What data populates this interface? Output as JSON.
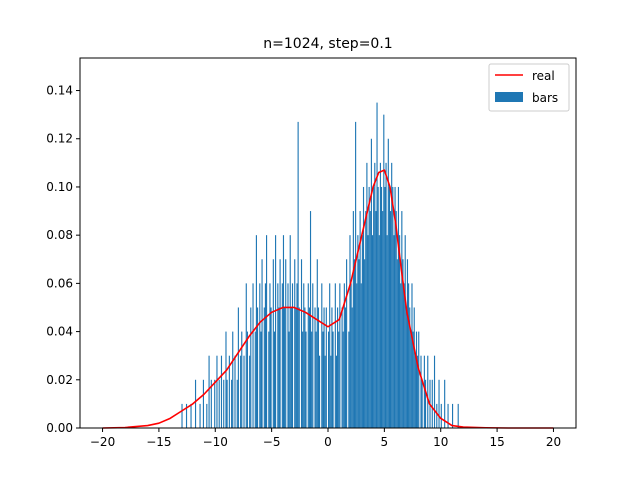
{
  "chart_data": {
    "type": "bar",
    "title": "n=1024, step=0.1",
    "xlabel": "",
    "ylabel": "",
    "xlim": [
      -22.0,
      22.0
    ],
    "ylim": [
      0,
      0.1535
    ],
    "xticks": [
      -20,
      -15,
      -10,
      -5,
      0,
      5,
      10,
      15,
      20
    ],
    "yticks": [
      0.0,
      0.02,
      0.04,
      0.06,
      0.08,
      0.1,
      0.12,
      0.14
    ],
    "xtick_labels": [
      "−20",
      "−15",
      "−10",
      "−5",
      "0",
      "5",
      "10",
      "15",
      "20"
    ],
    "ytick_labels": [
      "0.00",
      "0.02",
      "0.04",
      "0.06",
      "0.08",
      "0.10",
      "0.12",
      "0.14"
    ],
    "grid": false,
    "legend": {
      "position": "top-right",
      "entries": [
        {
          "label": "real",
          "kind": "line",
          "color": "#ff0000"
        },
        {
          "label": "bars",
          "kind": "patch",
          "color": "#1f77b4"
        }
      ]
    },
    "bar_series": {
      "name": "bars",
      "color": "#1f77b4",
      "bin_width": 0.1,
      "x": [
        -13.0,
        -12.6,
        -12.2,
        -11.8,
        -11.4,
        -11.1,
        -10.8,
        -10.6,
        -10.4,
        -10.1,
        -9.9,
        -9.7,
        -9.5,
        -9.3,
        -9.1,
        -9.0,
        -8.8,
        -8.6,
        -8.5,
        -8.3,
        -8.1,
        -8.0,
        -7.8,
        -7.7,
        -7.5,
        -7.3,
        -7.2,
        -7.0,
        -6.9,
        -6.7,
        -6.5,
        -6.4,
        -6.3,
        -6.1,
        -6.0,
        -5.9,
        -5.7,
        -5.6,
        -5.5,
        -5.3,
        -5.2,
        -5.1,
        -4.9,
        -4.8,
        -4.7,
        -4.5,
        -4.4,
        -4.3,
        -4.1,
        -4.0,
        -3.9,
        -3.8,
        -3.6,
        -3.5,
        -3.4,
        -3.3,
        -3.2,
        -3.0,
        -2.9,
        -2.8,
        -2.7,
        -2.6,
        -2.4,
        -2.3,
        -2.2,
        -2.1,
        -2.0,
        -1.8,
        -1.7,
        -1.6,
        -1.5,
        -1.4,
        -1.2,
        -1.1,
        -1.0,
        -0.9,
        -0.8,
        -0.6,
        -0.5,
        -0.4,
        -0.3,
        -0.2,
        0.0,
        0.1,
        0.2,
        0.3,
        0.4,
        0.6,
        0.7,
        0.8,
        0.9,
        1.0,
        1.2,
        1.3,
        1.4,
        1.5,
        1.6,
        1.8,
        1.9,
        2.0,
        2.1,
        2.2,
        2.3,
        2.4,
        2.5,
        2.6,
        2.7,
        2.8,
        2.9,
        3.0,
        3.1,
        3.2,
        3.3,
        3.4,
        3.5,
        3.6,
        3.7,
        3.8,
        3.9,
        4.0,
        4.1,
        4.2,
        4.3,
        4.4,
        4.5,
        4.6,
        4.7,
        4.8,
        4.9,
        5.0,
        5.1,
        5.2,
        5.3,
        5.4,
        5.5,
        5.6,
        5.7,
        5.8,
        5.9,
        6.0,
        6.1,
        6.2,
        6.3,
        6.4,
        6.5,
        6.6,
        6.7,
        6.8,
        6.9,
        7.0,
        7.1,
        7.2,
        7.3,
        7.4,
        7.5,
        7.6,
        7.7,
        7.8,
        7.9,
        8.0,
        8.2,
        8.3,
        8.5,
        8.6,
        8.8,
        9.0,
        9.2,
        9.4,
        9.6,
        9.8,
        10.0,
        10.3,
        10.6,
        11.0,
        11.5
      ],
      "values": [
        0.01,
        0.01,
        0.01,
        0.02,
        0.01,
        0.02,
        0.01,
        0.03,
        0.02,
        0.02,
        0.03,
        0.02,
        0.03,
        0.02,
        0.04,
        0.02,
        0.03,
        0.02,
        0.04,
        0.03,
        0.02,
        0.05,
        0.03,
        0.04,
        0.03,
        0.06,
        0.04,
        0.03,
        0.05,
        0.06,
        0.04,
        0.08,
        0.05,
        0.06,
        0.04,
        0.07,
        0.05,
        0.06,
        0.08,
        0.04,
        0.06,
        0.05,
        0.07,
        0.04,
        0.08,
        0.06,
        0.05,
        0.07,
        0.06,
        0.08,
        0.05,
        0.07,
        0.06,
        0.04,
        0.08,
        0.05,
        0.06,
        0.07,
        0.05,
        0.06,
        0.127,
        0.05,
        0.07,
        0.04,
        0.06,
        0.05,
        0.04,
        0.06,
        0.05,
        0.09,
        0.04,
        0.06,
        0.05,
        0.04,
        0.07,
        0.05,
        0.03,
        0.06,
        0.04,
        0.05,
        0.03,
        0.05,
        0.04,
        0.06,
        0.03,
        0.05,
        0.04,
        0.06,
        0.03,
        0.05,
        0.04,
        0.06,
        0.05,
        0.04,
        0.06,
        0.05,
        0.07,
        0.04,
        0.08,
        0.06,
        0.05,
        0.09,
        0.07,
        0.127,
        0.06,
        0.08,
        0.07,
        0.09,
        0.06,
        0.08,
        0.1,
        0.07,
        0.09,
        0.11,
        0.08,
        0.1,
        0.09,
        0.12,
        0.08,
        0.1,
        0.11,
        0.09,
        0.135,
        0.1,
        0.08,
        0.11,
        0.1,
        0.09,
        0.13,
        0.1,
        0.11,
        0.08,
        0.12,
        0.1,
        0.09,
        0.11,
        0.1,
        0.08,
        0.1,
        0.09,
        0.07,
        0.1,
        0.08,
        0.06,
        0.09,
        0.07,
        0.06,
        0.08,
        0.05,
        0.07,
        0.06,
        0.05,
        0.04,
        0.06,
        0.04,
        0.05,
        0.03,
        0.04,
        0.03,
        0.04,
        0.03,
        0.02,
        0.03,
        0.02,
        0.03,
        0.02,
        0.02,
        0.03,
        0.01,
        0.02,
        0.01,
        0.02,
        0.01,
        0.01,
        0.01
      ]
    },
    "line_series": {
      "name": "real",
      "color": "#ff0000",
      "x": [
        -20,
        -18,
        -16,
        -15,
        -14,
        -13,
        -12,
        -11,
        -10,
        -9,
        -8,
        -7,
        -6,
        -5,
        -4,
        -3,
        -2,
        -1,
        0,
        1,
        2,
        3,
        3.5,
        4,
        4.5,
        5,
        5.5,
        6,
        6.5,
        7,
        8,
        9,
        10,
        11,
        12,
        14,
        16,
        18,
        20
      ],
      "values": [
        0.0,
        0.0002,
        0.001,
        0.002,
        0.004,
        0.007,
        0.01,
        0.014,
        0.019,
        0.024,
        0.031,
        0.038,
        0.044,
        0.048,
        0.05,
        0.05,
        0.048,
        0.045,
        0.042,
        0.045,
        0.06,
        0.08,
        0.09,
        0.1,
        0.106,
        0.107,
        0.1,
        0.085,
        0.066,
        0.048,
        0.025,
        0.01,
        0.004,
        0.001,
        0.0004,
        0.0001,
        0.0,
        0.0,
        0.0
      ]
    }
  }
}
